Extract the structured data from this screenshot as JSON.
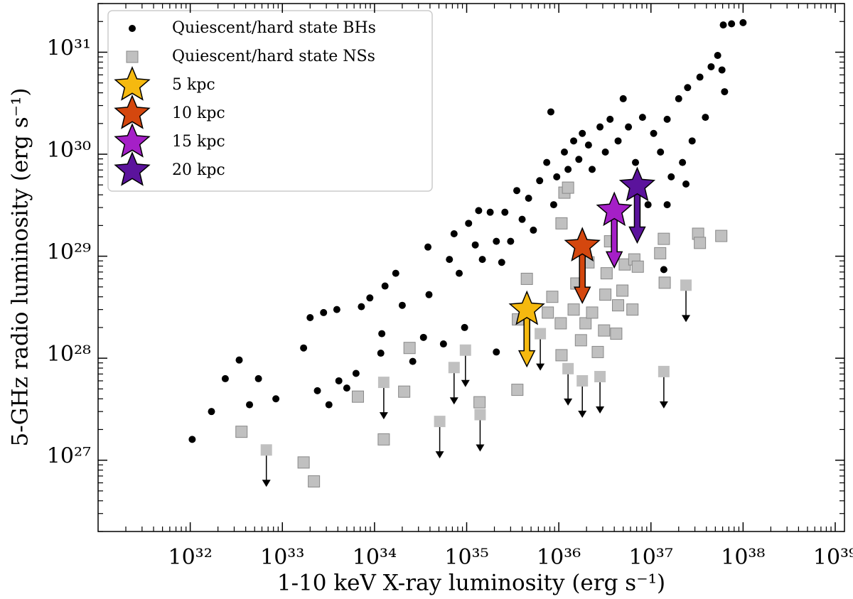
{
  "chart_data": {
    "type": "scatter",
    "xlabel": "1-10 keV X-ray luminosity (erg s⁻¹)",
    "ylabel": "5-GHz radio luminosity (erg s⁻¹)",
    "xscale": "log",
    "yscale": "log",
    "xlim": [
      1e+31,
      1.26e+39
    ],
    "ylim": [
      2e+26,
      3e+31
    ],
    "xticks": [
      {
        "value": 1e+32,
        "label": "10³²"
      },
      {
        "value": 1e+33,
        "label": "10³³"
      },
      {
        "value": 1e+34,
        "label": "10³⁴"
      },
      {
        "value": 1e+35,
        "label": "10³⁵"
      },
      {
        "value": 1e+36,
        "label": "10³⁶"
      },
      {
        "value": 1e+37,
        "label": "10³⁷"
      },
      {
        "value": 1e+38,
        "label": "10³⁸"
      },
      {
        "value": 1e+39,
        "label": "10³⁹"
      }
    ],
    "yticks": [
      {
        "value": 1e+27,
        "label": "10²⁷"
      },
      {
        "value": 1e+28,
        "label": "10²⁸"
      },
      {
        "value": 1e+29,
        "label": "10²⁹"
      },
      {
        "value": 1e+30,
        "label": "10³⁰"
      },
      {
        "value": 1e+31,
        "label": "10³¹"
      }
    ],
    "legend": "upper left",
    "series": [
      {
        "name": "Quiescent/hard state BHs",
        "marker": "circle",
        "color": "#000000",
        "x": [
          1.05e+32,
          1.7e+32,
          2.4e+32,
          3.4e+32,
          4.4e+32,
          5.5e+32,
          8.5e+32,
          1.7e+33,
          2e+33,
          2.8e+33,
          3.9e+33,
          2.4e+33,
          3.2e+33,
          4.1e+33,
          5e+33,
          6.3e+33,
          7.2e+33,
          8.9e+33,
          1.17e+34,
          1.2e+34,
          1.3e+34,
          2e+34,
          1.7e+34,
          2.6e+34,
          3.4e+34,
          3.8e+34,
          3.9e+34,
          5.6e+34,
          6.5e+34,
          7.3e+34,
          8.3e+34,
          9.5e+34,
          1.05e+35,
          1.24e+35,
          1.35e+35,
          1.48e+35,
          1.8e+35,
          2.1e+35,
          2.4e+35,
          2.6e+35,
          3e+35,
          2.1e+35,
          3.5e+35,
          4e+35,
          4.7e+35,
          5.3e+35,
          6.2e+35,
          7.4e+35,
          8.2e+35,
          8.8e+35,
          9.5e+35,
          1.15e+36,
          1.26e+36,
          1.45e+36,
          1.65e+36,
          1.8e+36,
          2.1e+36,
          2.3e+36,
          2.8e+36,
          3.2e+36,
          3.6e+36,
          4.4e+36,
          5e+36,
          5.7e+36,
          6.8e+36,
          8.1e+36,
          9.3e+36,
          1.07e+37,
          1.27e+37,
          1.5e+37,
          1.66e+37,
          2e+37,
          2.2e+37,
          2.5e+37,
          2.8e+37,
          3.4e+37,
          3.9e+37,
          4.5e+37,
          5.3e+37,
          5.9e+37,
          6.1e+37,
          7.5e+37,
          1e+38,
          6.3e+37,
          1.5e+37,
          2.4e+37,
          1.38e+37
        ],
        "y": [
          1.6e+27,
          3e+27,
          6.3e+27,
          9.6e+27,
          3.5e+27,
          6.3e+27,
          4e+27,
          1.26e+28,
          2.5e+28,
          2.8e+28,
          3e+28,
          4.8e+27,
          3.5e+27,
          6e+27,
          5.1e+27,
          7.1e+27,
          3.2e+28,
          3.9e+28,
          1.12e+28,
          1.74e+28,
          5.1e+28,
          3.3e+28,
          6.8e+28,
          9.3e+27,
          1.6e+28,
          1.23e+29,
          4.2e+28,
          1.38e+28,
          9.3e+28,
          1.66e+29,
          6.8e+28,
          2e+28,
          2.1e+29,
          1.29e+29,
          2.8e+29,
          9.3e+28,
          2.7e+29,
          1.4e+29,
          8.7e+28,
          2.7e+29,
          1.4e+29,
          1.15e+28,
          4.4e+29,
          2.3e+29,
          3.7e+29,
          1.8e+29,
          5.5e+29,
          8.3e+29,
          2.6e+30,
          3.2e+29,
          6e+29,
          1.05e+30,
          7.1e+29,
          1.35e+30,
          8.9e+29,
          1.6e+30,
          1.23e+30,
          7.1e+29,
          1.85e+30,
          1.05e+30,
          2.2e+30,
          1.35e+30,
          3.5e+30,
          1.85e+30,
          8.3e+29,
          2.3e+30,
          3.2e+29,
          1.6e+30,
          1.05e+30,
          2.2e+30,
          6e+29,
          3.5e+30,
          8.3e+29,
          4.5e+30,
          1.35e+30,
          5.7e+30,
          2.3e+30,
          7.2e+30,
          9.3e+30,
          6.7e+30,
          1.85e+31,
          1.9e+31,
          1.95e+31,
          4.1e+30,
          3.2e+29,
          5.1e+29,
          7.4e+28
        ]
      },
      {
        "name": "Quiescent/hard state NSs",
        "marker": "square",
        "color": "#c0c0c0",
        "x": [
          3.6e+32,
          6.7e+32,
          1.7e+33,
          2.2e+33,
          6.6e+33,
          1.26e+34,
          1.26e+34,
          2.1e+34,
          2.4e+34,
          5.1e+34,
          7.3e+34,
          9.7e+34,
          1.38e+35,
          1.4e+35,
          3.55e+35,
          4.5e+35,
          3.6e+35,
          6.3e+35,
          7.6e+35,
          8.5e+35,
          1.05e+36,
          1.15e+36,
          1.26e+36,
          1.07e+36,
          1.07e+36,
          1.26e+36,
          1.45e+36,
          1.55e+36,
          1.74e+36,
          1.8e+36,
          1.95e+36,
          2.1e+36,
          2.3e+36,
          2.65e+36,
          2.8e+36,
          3.1e+36,
          3.2e+36,
          3.3e+36,
          3.6e+36,
          4.2e+36,
          4.4e+36,
          4.9e+36,
          5.2e+36,
          6.3e+36,
          6.6e+36,
          7.2e+36,
          1.26e+37,
          1.38e+37,
          1.41e+37,
          1.38e+37,
          2.4e+37,
          3.25e+37,
          3.4e+37,
          5.8e+37
        ],
        "y": [
          1.9e+27,
          1.26e+27,
          9.5e+26,
          6.2e+26,
          4.2e+27,
          5.8e+27,
          1.6e+27,
          4.7e+27,
          1.26e+28,
          2.4e+27,
          8.1e+27,
          1.2e+28,
          3.7e+27,
          2.8e+27,
          4.9e+27,
          6e+28,
          2.4e+28,
          1.74e+28,
          2.8e+28,
          4e+28,
          2.2e+28,
          4.2e+29,
          4.7e+29,
          2.1e+29,
          1.07e+28,
          7.9e+27,
          3e+28,
          5.4e+28,
          1.5e+28,
          6e+27,
          2.2e+28,
          8.7e+28,
          2.8e+28,
          1.15e+28,
          6.6e+27,
          1.87e+28,
          4.2e+28,
          6.8e+28,
          1.4e+29,
          1.74e+28,
          3.3e+28,
          4.6e+28,
          8.3e+28,
          3e+28,
          9.3e+28,
          7.9e+28,
          1.07e+29,
          1.48e+29,
          5.5e+28,
          7.4e+27,
          5.2e+28,
          1.66e+29,
          1.35e+29,
          1.58e+29
        ],
        "upper_limit": [
          false,
          true,
          false,
          false,
          false,
          true,
          false,
          false,
          false,
          true,
          true,
          true,
          false,
          true,
          false,
          false,
          false,
          true,
          false,
          false,
          false,
          false,
          false,
          false,
          false,
          true,
          false,
          false,
          false,
          true,
          false,
          false,
          false,
          false,
          true,
          false,
          false,
          false,
          false,
          false,
          false,
          false,
          false,
          false,
          false,
          false,
          false,
          false,
          false,
          true,
          true,
          false,
          false,
          false
        ]
      },
      {
        "name": "5 kpc",
        "marker": "star",
        "color": "#f5b90f",
        "x": [
          4.5e+35
        ],
        "y": [
          3e+28
        ],
        "upper_limit": [
          true
        ]
      },
      {
        "name": "10 kpc",
        "marker": "star",
        "color": "#d4470e",
        "x": [
          1.8e+36
        ],
        "y": [
          1.26e+29
        ],
        "upper_limit": [
          true
        ]
      },
      {
        "name": "15 kpc",
        "marker": "star",
        "color": "#a51fc7",
        "x": [
          4e+36
        ],
        "y": [
          2.8e+29
        ],
        "upper_limit": [
          true
        ]
      },
      {
        "name": "20 kpc",
        "marker": "star",
        "color": "#5b139c",
        "x": [
          7.1e+36
        ],
        "y": [
          4.9e+29
        ],
        "upper_limit": [
          true
        ]
      }
    ]
  }
}
